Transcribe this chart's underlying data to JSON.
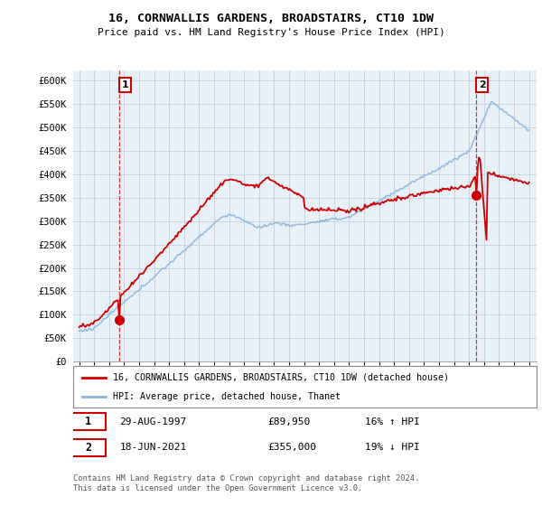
{
  "title": "16, CORNWALLIS GARDENS, BROADSTAIRS, CT10 1DW",
  "subtitle": "Price paid vs. HM Land Registry's House Price Index (HPI)",
  "legend_line1": "16, CORNWALLIS GARDENS, BROADSTAIRS, CT10 1DW (detached house)",
  "legend_line2": "HPI: Average price, detached house, Thanet",
  "point1_date": "29-AUG-1997",
  "point1_price": "£89,950",
  "point1_hpi": "16% ↑ HPI",
  "point2_date": "18-JUN-2021",
  "point2_price": "£355,000",
  "point2_hpi": "19% ↓ HPI",
  "footer": "Contains HM Land Registry data © Crown copyright and database right 2024.\nThis data is licensed under the Open Government Licence v3.0.",
  "hpi_color": "#89b4d9",
  "price_color": "#cc0000",
  "ylim_min": 0,
  "ylim_max": 620000,
  "point1_year": 1997.66,
  "point1_value": 89950,
  "point2_year": 2021.46,
  "point2_value": 355000,
  "background_color": "#ffffff",
  "chart_bg": "#e8f0f8",
  "grid_color": "#c8d4e0"
}
